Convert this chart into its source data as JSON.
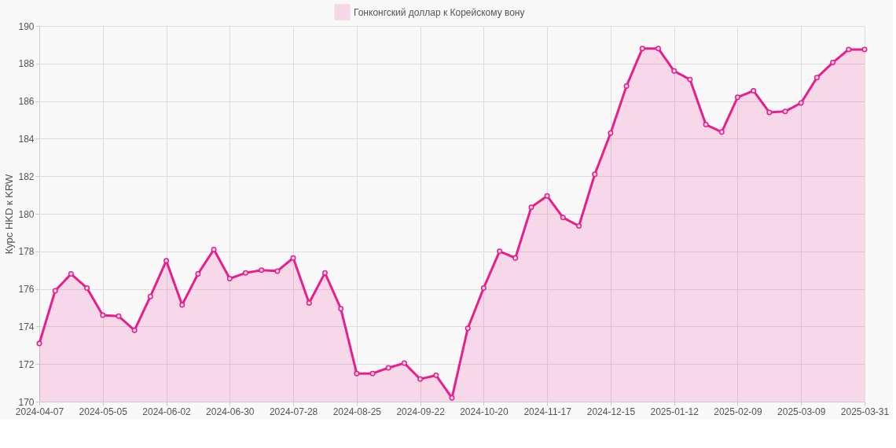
{
  "chart_data": {
    "type": "area",
    "ylabel": "Курс HKD к KRW",
    "categories": [
      "2024-04-07",
      null,
      null,
      null,
      "2024-05-05",
      null,
      null,
      null,
      "2024-06-02",
      null,
      null,
      null,
      "2024-06-30",
      null,
      null,
      null,
      "2024-07-28",
      null,
      null,
      null,
      "2024-08-25",
      null,
      null,
      null,
      "2024-09-22",
      null,
      null,
      null,
      "2024-10-20",
      null,
      null,
      null,
      "2024-11-17",
      null,
      null,
      null,
      "2024-12-15",
      null,
      null,
      null,
      "2025-01-12",
      null,
      null,
      null,
      "2025-02-09",
      null,
      null,
      null,
      "2025-03-09",
      null,
      null,
      null,
      "2025-03-31"
    ],
    "series": [
      {
        "name": "Гонконгский доллар к Корейскому вону",
        "color": "#e91e8c",
        "values": [
          173.1,
          175.9,
          176.8,
          176.05,
          174.6,
          174.55,
          173.8,
          175.6,
          177.5,
          175.15,
          176.8,
          178.1,
          176.55,
          176.85,
          177.0,
          176.95,
          177.65,
          175.25,
          176.85,
          174.95,
          171.5,
          171.5,
          171.8,
          172.05,
          171.2,
          171.4,
          170.2,
          173.9,
          176.05,
          178.0,
          177.65,
          180.35,
          180.95,
          179.8,
          179.35,
          182.1,
          184.3,
          186.8,
          188.8,
          188.8,
          187.6,
          187.15,
          184.75,
          184.35,
          186.2,
          186.55,
          185.4,
          185.45,
          185.9,
          187.25,
          188.05,
          188.75,
          188.75
        ]
      }
    ],
    "ylim": [
      170,
      190
    ],
    "yticks": [
      170,
      172,
      174,
      176,
      178,
      180,
      182,
      184,
      186,
      188,
      190
    ],
    "grid": true,
    "legend": "top",
    "marker": "circle",
    "line_style": "solid"
  }
}
